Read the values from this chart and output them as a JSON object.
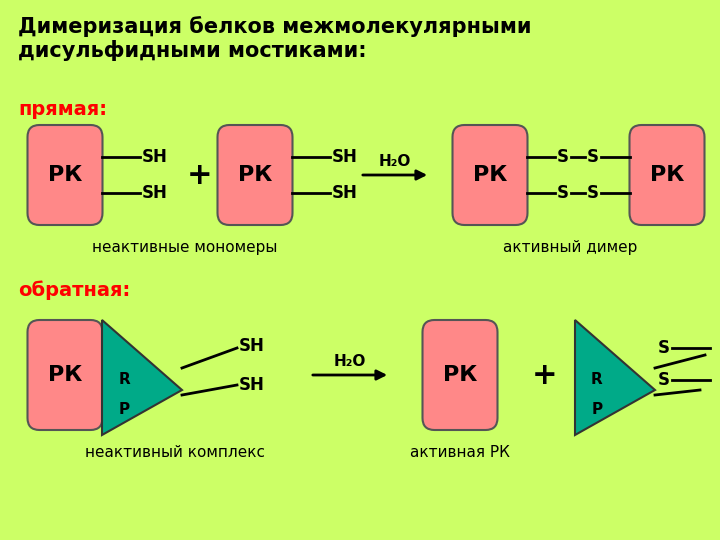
{
  "title": "Димеризация белков межмолекулярными\nдисульфидными мостиками:",
  "title_fontsize": 15,
  "title_fontweight": "bold",
  "bg_color": "#ccff66",
  "pk_color": "#ff8888",
  "teal_color": "#00aa88",
  "label_prym": "прямая:",
  "label_obr": "обратная:",
  "label_color": "#ff0000",
  "text_inactive_mono": "неактивные мономеры",
  "text_active_dimer": "активный димер",
  "text_inactive_complex": "неактивный комплекс",
  "text_active_pk": "активная РК",
  "pk_text": "РК"
}
